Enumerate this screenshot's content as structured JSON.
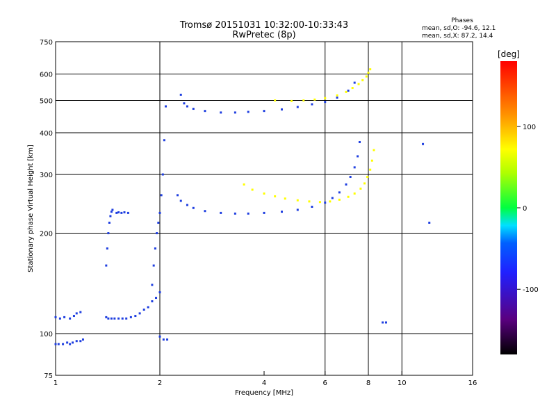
{
  "chart_data": {
    "type": "scatter",
    "title": "Tromsø 20151031 10:32:00-10:33:43",
    "subtitle": "RwPretec (8p)",
    "xlabel": "Frequency [MHz]",
    "ylabel": "Stationary phase Virtual Height [km]",
    "x_scale": "log",
    "y_scale": "log",
    "xlim": [
      1,
      16
    ],
    "ylim": [
      75,
      750
    ],
    "x_ticks": [
      1,
      2,
      4,
      6,
      8,
      10,
      16
    ],
    "y_ticks": [
      75,
      100,
      200,
      300,
      400,
      500,
      600,
      750
    ],
    "x_grid": [
      2,
      6,
      8,
      10
    ],
    "y_grid": [
      100,
      200,
      300,
      400,
      500,
      600
    ],
    "colorbar": {
      "label": "[deg]",
      "range": [
        -180,
        180
      ],
      "ticks": [
        -100,
        0,
        100
      ],
      "scale": "rainbow"
    },
    "stats": {
      "heading": "Phases",
      "line_o": "mean, sd,O: -94.6, 12.1",
      "line_x": "mean, sd,X:  87.2, 14.4"
    },
    "series": [
      {
        "mode": "O",
        "color": "#1f3fe0",
        "traces": [
          {
            "x": [
              1.0,
              1.02,
              1.05,
              1.08,
              1.1,
              1.12,
              1.15,
              1.18,
              1.2
            ],
            "y": [
              93,
              93,
              93,
              94,
              93,
              94,
              95,
              95,
              96
            ]
          },
          {
            "x": [
              1.0,
              1.03,
              1.06,
              1.1,
              1.13,
              1.15,
              1.18
            ],
            "y": [
              112,
              111,
              112,
              111,
              113,
              115,
              116
            ]
          },
          {
            "x": [
              1.4,
              1.42,
              1.45,
              1.48,
              1.52,
              1.56,
              1.6,
              1.65,
              1.7
            ],
            "y": [
              112,
              111,
              111,
              111,
              111,
              111,
              111,
              112,
              113
            ]
          },
          {
            "x": [
              1.4,
              1.41,
              1.42,
              1.43,
              1.44,
              1.45,
              1.46
            ],
            "y": [
              160,
              180,
              200,
              215,
              225,
              232,
              235
            ]
          },
          {
            "x": [
              1.5,
              1.52,
              1.55,
              1.58,
              1.62
            ],
            "y": [
              230,
              231,
              230,
              231,
              230
            ]
          },
          {
            "x": [
              1.75,
              1.8,
              1.85,
              1.9,
              1.95,
              2.0
            ],
            "y": [
              115,
              118,
              120,
              125,
              128,
              133
            ]
          },
          {
            "x": [
              1.9,
              1.92,
              1.94,
              1.96,
              1.98,
              2.0,
              2.02,
              2.04,
              2.06,
              2.08
            ],
            "y": [
              140,
              160,
              180,
              200,
              215,
              230,
              260,
              300,
              380,
              480
            ]
          },
          {
            "x": [
              2.0,
              2.05,
              2.1
            ],
            "y": [
              98,
              96,
              96
            ]
          },
          {
            "x": [
              2.25,
              2.3,
              2.4,
              2.5,
              2.7,
              3.0,
              3.3,
              3.6,
              4.0,
              4.5,
              5.0,
              5.5,
              6.0,
              6.3,
              6.6,
              6.9,
              7.1,
              7.3,
              7.45,
              7.55
            ],
            "y": [
              260,
              250,
              243,
              238,
              233,
              230,
              229,
              229,
              230,
              232,
              235,
              240,
              247,
              255,
              265,
              280,
              295,
              315,
              340,
              375
            ]
          },
          {
            "x": [
              2.3,
              2.35,
              2.4,
              2.5,
              2.7,
              3.0,
              3.3,
              3.6,
              4.0,
              4.5,
              5.0,
              5.5,
              6.0,
              6.5,
              7.0,
              7.3
            ],
            "y": [
              520,
              490,
              480,
              472,
              465,
              460,
              460,
              462,
              465,
              470,
              478,
              487,
              495,
              510,
              535,
              565
            ]
          },
          {
            "x": [
              8.8,
              9.0,
              11.5,
              12.0
            ],
            "y": [
              108,
              108,
              370,
              215
            ]
          }
        ]
      },
      {
        "mode": "X",
        "color": "#ffff00",
        "traces": [
          {
            "x": [
              3.5,
              3.7,
              4.0,
              4.3,
              4.6,
              5.0,
              5.4,
              5.8,
              6.2,
              6.6,
              7.0,
              7.3,
              7.6,
              7.8,
              7.95,
              8.1,
              8.2,
              8.3
            ],
            "y": [
              280,
              270,
              263,
              258,
              254,
              251,
              249,
              248,
              249,
              252,
              257,
              263,
              272,
              282,
              295,
              310,
              330,
              355
            ]
          },
          {
            "x": [
              4.3,
              4.8,
              5.2,
              5.6,
              6.0,
              6.5,
              6.9,
              7.2,
              7.5,
              7.7,
              7.9,
              8.0,
              8.1
            ],
            "y": [
              500,
              498,
              500,
              503,
              508,
              518,
              530,
              545,
              560,
              575,
              590,
              605,
              620
            ]
          }
        ]
      }
    ]
  }
}
